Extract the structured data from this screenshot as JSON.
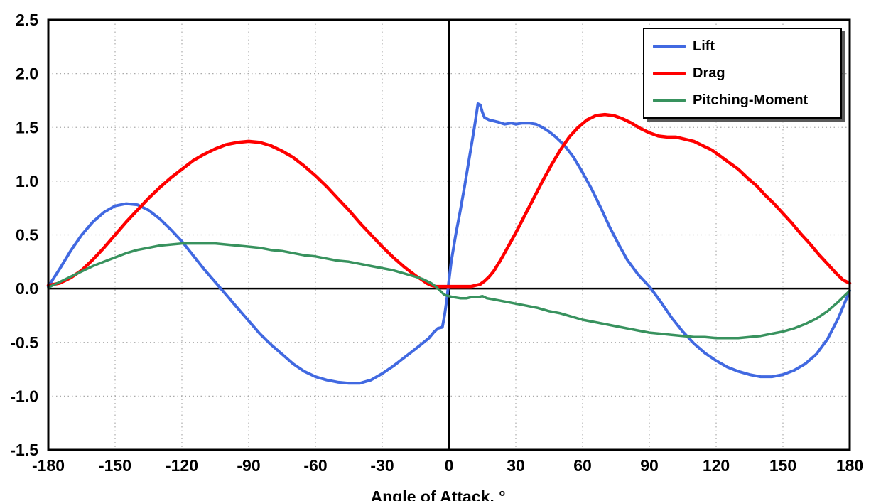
{
  "chart_data": {
    "type": "line",
    "title": "",
    "xlabel": "Angle of Attack, °",
    "ylabel": "",
    "xlim": [
      -180,
      180
    ],
    "ylim": [
      -1.5,
      2.5
    ],
    "x_ticks": [
      -180,
      -150,
      -120,
      -90,
      -60,
      -30,
      0,
      30,
      60,
      90,
      120,
      150,
      180
    ],
    "y_ticks": [
      2.5,
      2.0,
      1.5,
      1.0,
      0.5,
      0.0,
      -0.5,
      -1.0,
      -1.5
    ],
    "grid": true,
    "grid_color": "#aaaaaa",
    "axis_color": "#000000",
    "legend_position": "top-right",
    "series": [
      {
        "name": "Lift",
        "color": "#4169E1",
        "width": 4,
        "points": [
          [
            -180,
            0.02
          ],
          [
            -175,
            0.18
          ],
          [
            -170,
            0.35
          ],
          [
            -165,
            0.5
          ],
          [
            -160,
            0.62
          ],
          [
            -155,
            0.71
          ],
          [
            -150,
            0.77
          ],
          [
            -145,
            0.79
          ],
          [
            -140,
            0.78
          ],
          [
            -135,
            0.73
          ],
          [
            -130,
            0.65
          ],
          [
            -125,
            0.55
          ],
          [
            -120,
            0.44
          ],
          [
            -115,
            0.31
          ],
          [
            -110,
            0.18
          ],
          [
            -105,
            0.06
          ],
          [
            -100,
            -0.06
          ],
          [
            -95,
            -0.18
          ],
          [
            -90,
            -0.3
          ],
          [
            -85,
            -0.42
          ],
          [
            -80,
            -0.52
          ],
          [
            -75,
            -0.61
          ],
          [
            -70,
            -0.7
          ],
          [
            -65,
            -0.77
          ],
          [
            -60,
            -0.82
          ],
          [
            -55,
            -0.85
          ],
          [
            -50,
            -0.87
          ],
          [
            -45,
            -0.88
          ],
          [
            -40,
            -0.88
          ],
          [
            -35,
            -0.85
          ],
          [
            -30,
            -0.79
          ],
          [
            -25,
            -0.72
          ],
          [
            -20,
            -0.64
          ],
          [
            -15,
            -0.56
          ],
          [
            -12,
            -0.51
          ],
          [
            -9,
            -0.46
          ],
          [
            -7,
            -0.41
          ],
          [
            -5,
            -0.37
          ],
          [
            -3,
            -0.36
          ],
          [
            -2,
            -0.25
          ],
          [
            -1,
            -0.1
          ],
          [
            0,
            0.08
          ],
          [
            1,
            0.25
          ],
          [
            3,
            0.5
          ],
          [
            5,
            0.72
          ],
          [
            7,
            0.95
          ],
          [
            9,
            1.2
          ],
          [
            11,
            1.45
          ],
          [
            12,
            1.58
          ],
          [
            13,
            1.72
          ],
          [
            14,
            1.71
          ],
          [
            15,
            1.64
          ],
          [
            16,
            1.59
          ],
          [
            18,
            1.57
          ],
          [
            20,
            1.56
          ],
          [
            22,
            1.55
          ],
          [
            25,
            1.53
          ],
          [
            28,
            1.54
          ],
          [
            30,
            1.53
          ],
          [
            33,
            1.54
          ],
          [
            36,
            1.54
          ],
          [
            39,
            1.53
          ],
          [
            42,
            1.5
          ],
          [
            45,
            1.46
          ],
          [
            48,
            1.41
          ],
          [
            52,
            1.33
          ],
          [
            56,
            1.22
          ],
          [
            60,
            1.08
          ],
          [
            64,
            0.93
          ],
          [
            68,
            0.76
          ],
          [
            72,
            0.58
          ],
          [
            76,
            0.42
          ],
          [
            80,
            0.27
          ],
          [
            85,
            0.13
          ],
          [
            90,
            0.02
          ],
          [
            95,
            -0.12
          ],
          [
            100,
            -0.27
          ],
          [
            105,
            -0.4
          ],
          [
            110,
            -0.51
          ],
          [
            115,
            -0.6
          ],
          [
            120,
            -0.67
          ],
          [
            125,
            -0.73
          ],
          [
            130,
            -0.77
          ],
          [
            135,
            -0.8
          ],
          [
            140,
            -0.82
          ],
          [
            145,
            -0.82
          ],
          [
            150,
            -0.8
          ],
          [
            155,
            -0.76
          ],
          [
            160,
            -0.7
          ],
          [
            165,
            -0.61
          ],
          [
            170,
            -0.47
          ],
          [
            175,
            -0.27
          ],
          [
            180,
            -0.02
          ]
        ]
      },
      {
        "name": "Drag",
        "color": "#FF0000",
        "width": 4.5,
        "points": [
          [
            -180,
            0.03
          ],
          [
            -175,
            0.05
          ],
          [
            -170,
            0.1
          ],
          [
            -165,
            0.17
          ],
          [
            -160,
            0.27
          ],
          [
            -155,
            0.38
          ],
          [
            -150,
            0.5
          ],
          [
            -145,
            0.62
          ],
          [
            -140,
            0.73
          ],
          [
            -135,
            0.84
          ],
          [
            -130,
            0.94
          ],
          [
            -125,
            1.03
          ],
          [
            -120,
            1.11
          ],
          [
            -115,
            1.19
          ],
          [
            -110,
            1.25
          ],
          [
            -105,
            1.3
          ],
          [
            -100,
            1.34
          ],
          [
            -95,
            1.36
          ],
          [
            -90,
            1.37
          ],
          [
            -85,
            1.36
          ],
          [
            -80,
            1.33
          ],
          [
            -75,
            1.28
          ],
          [
            -70,
            1.22
          ],
          [
            -65,
            1.14
          ],
          [
            -60,
            1.05
          ],
          [
            -55,
            0.95
          ],
          [
            -50,
            0.84
          ],
          [
            -45,
            0.73
          ],
          [
            -40,
            0.61
          ],
          [
            -35,
            0.5
          ],
          [
            -30,
            0.39
          ],
          [
            -25,
            0.29
          ],
          [
            -20,
            0.2
          ],
          [
            -15,
            0.12
          ],
          [
            -12,
            0.08
          ],
          [
            -10,
            0.05
          ],
          [
            -8,
            0.03
          ],
          [
            -6,
            0.02
          ],
          [
            -4,
            0.02
          ],
          [
            0,
            0.02
          ],
          [
            4,
            0.02
          ],
          [
            8,
            0.02
          ],
          [
            10,
            0.02
          ],
          [
            12,
            0.03
          ],
          [
            14,
            0.04
          ],
          [
            16,
            0.07
          ],
          [
            18,
            0.11
          ],
          [
            20,
            0.16
          ],
          [
            23,
            0.26
          ],
          [
            26,
            0.37
          ],
          [
            30,
            0.52
          ],
          [
            34,
            0.68
          ],
          [
            38,
            0.84
          ],
          [
            42,
            1.0
          ],
          [
            46,
            1.15
          ],
          [
            50,
            1.29
          ],
          [
            54,
            1.41
          ],
          [
            58,
            1.5
          ],
          [
            62,
            1.57
          ],
          [
            66,
            1.61
          ],
          [
            70,
            1.62
          ],
          [
            74,
            1.61
          ],
          [
            78,
            1.58
          ],
          [
            82,
            1.54
          ],
          [
            86,
            1.49
          ],
          [
            90,
            1.45
          ],
          [
            94,
            1.42
          ],
          [
            98,
            1.41
          ],
          [
            102,
            1.41
          ],
          [
            106,
            1.39
          ],
          [
            110,
            1.37
          ],
          [
            114,
            1.33
          ],
          [
            118,
            1.29
          ],
          [
            122,
            1.23
          ],
          [
            126,
            1.17
          ],
          [
            130,
            1.11
          ],
          [
            134,
            1.03
          ],
          [
            138,
            0.96
          ],
          [
            142,
            0.87
          ],
          [
            146,
            0.79
          ],
          [
            150,
            0.7
          ],
          [
            154,
            0.61
          ],
          [
            158,
            0.51
          ],
          [
            162,
            0.42
          ],
          [
            166,
            0.32
          ],
          [
            170,
            0.23
          ],
          [
            174,
            0.14
          ],
          [
            177,
            0.08
          ],
          [
            180,
            0.05
          ]
        ]
      },
      {
        "name": "Pitching-Moment",
        "color": "#38925E",
        "width": 3.5,
        "points": [
          [
            -180,
            0.01
          ],
          [
            -175,
            0.06
          ],
          [
            -170,
            0.11
          ],
          [
            -165,
            0.16
          ],
          [
            -160,
            0.21
          ],
          [
            -155,
            0.25
          ],
          [
            -150,
            0.29
          ],
          [
            -145,
            0.33
          ],
          [
            -140,
            0.36
          ],
          [
            -135,
            0.38
          ],
          [
            -130,
            0.4
          ],
          [
            -125,
            0.41
          ],
          [
            -120,
            0.42
          ],
          [
            -115,
            0.42
          ],
          [
            -110,
            0.42
          ],
          [
            -105,
            0.42
          ],
          [
            -100,
            0.41
          ],
          [
            -95,
            0.4
          ],
          [
            -90,
            0.39
          ],
          [
            -85,
            0.38
          ],
          [
            -80,
            0.36
          ],
          [
            -75,
            0.35
          ],
          [
            -70,
            0.33
          ],
          [
            -65,
            0.31
          ],
          [
            -60,
            0.3
          ],
          [
            -55,
            0.28
          ],
          [
            -50,
            0.26
          ],
          [
            -45,
            0.25
          ],
          [
            -40,
            0.23
          ],
          [
            -35,
            0.21
          ],
          [
            -30,
            0.19
          ],
          [
            -25,
            0.17
          ],
          [
            -20,
            0.14
          ],
          [
            -15,
            0.11
          ],
          [
            -12,
            0.09
          ],
          [
            -10,
            0.07
          ],
          [
            -8,
            0.05
          ],
          [
            -6,
            0.02
          ],
          [
            -5,
            0.0
          ],
          [
            -4,
            -0.02
          ],
          [
            -3,
            -0.04
          ],
          [
            -2,
            -0.06
          ],
          [
            0,
            -0.07
          ],
          [
            2,
            -0.08
          ],
          [
            5,
            -0.09
          ],
          [
            8,
            -0.09
          ],
          [
            10,
            -0.08
          ],
          [
            13,
            -0.08
          ],
          [
            15,
            -0.07
          ],
          [
            17,
            -0.09
          ],
          [
            20,
            -0.1
          ],
          [
            25,
            -0.12
          ],
          [
            30,
            -0.14
          ],
          [
            35,
            -0.16
          ],
          [
            40,
            -0.18
          ],
          [
            45,
            -0.21
          ],
          [
            50,
            -0.23
          ],
          [
            55,
            -0.26
          ],
          [
            60,
            -0.29
          ],
          [
            65,
            -0.31
          ],
          [
            70,
            -0.33
          ],
          [
            75,
            -0.35
          ],
          [
            80,
            -0.37
          ],
          [
            85,
            -0.39
          ],
          [
            90,
            -0.41
          ],
          [
            95,
            -0.42
          ],
          [
            100,
            -0.43
          ],
          [
            105,
            -0.44
          ],
          [
            110,
            -0.45
          ],
          [
            115,
            -0.45
          ],
          [
            120,
            -0.46
          ],
          [
            125,
            -0.46
          ],
          [
            130,
            -0.46
          ],
          [
            135,
            -0.45
          ],
          [
            140,
            -0.44
          ],
          [
            145,
            -0.42
          ],
          [
            150,
            -0.4
          ],
          [
            155,
            -0.37
          ],
          [
            160,
            -0.33
          ],
          [
            165,
            -0.28
          ],
          [
            170,
            -0.21
          ],
          [
            175,
            -0.12
          ],
          [
            180,
            -0.02
          ]
        ]
      }
    ]
  }
}
